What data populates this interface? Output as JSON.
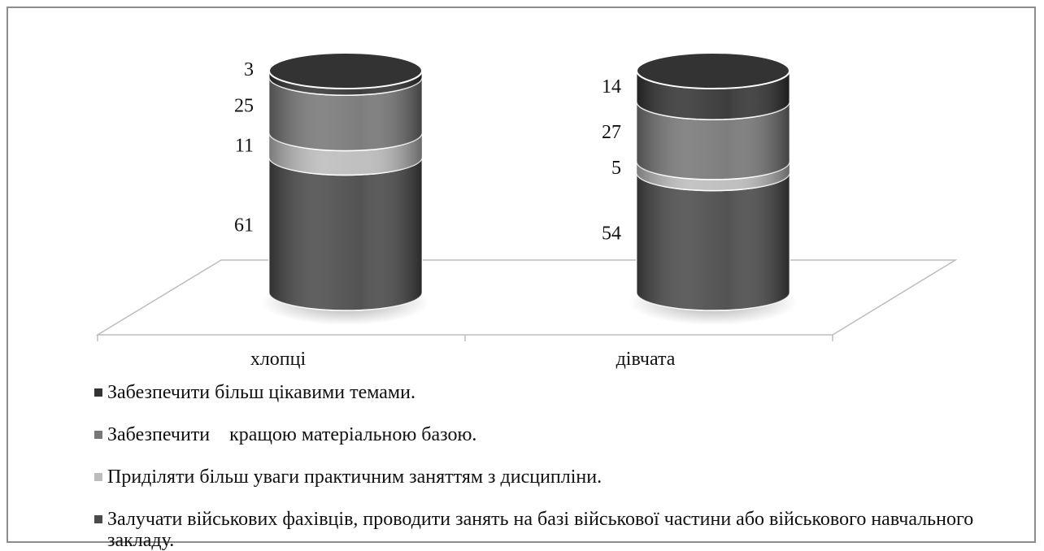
{
  "chart_data": {
    "type": "bar",
    "stacked": true,
    "style": "3d-cylinder",
    "categories": [
      "хлопці",
      "дівчата"
    ],
    "series": [
      {
        "name": "Залучати військових фахівців, проводити занять на базі військової частини або військового навчального закладу.",
        "values": [
          61,
          54
        ],
        "color": "#4a4a4a"
      },
      {
        "name": "Приділяти більш уваги практичним заняттям з дисципліни.",
        "values": [
          11,
          5
        ],
        "color": "#bcbcbc"
      },
      {
        "name": "Забезпечити    кращою матеріальною базою.",
        "values": [
          25,
          27
        ],
        "color": "#777777"
      },
      {
        "name": "Забезпечити більш цікавими темами.",
        "values": [
          3,
          14
        ],
        "color": "#333333"
      }
    ],
    "data_labels": {
      "хлопці": [
        "61",
        "11",
        "25",
        "3"
      ],
      "дівчата": [
        "54",
        "5",
        "27",
        "14"
      ]
    },
    "legend_position": "bottom",
    "grid": false
  },
  "legend": [
    {
      "label": "Забезпечити більш цікавими темами.",
      "color": "#333333"
    },
    {
      "label": "Забезпечити    кращою матеріальною базою.",
      "color": "#777777"
    },
    {
      "label": "Приділяти більш уваги практичним заняттям з дисципліни.",
      "color": "#bcbcbc"
    },
    {
      "label": "Залучати військових фахівців, проводити занять на базі військової частини або військового навчального закладу.",
      "color": "#4a4a4a"
    }
  ]
}
